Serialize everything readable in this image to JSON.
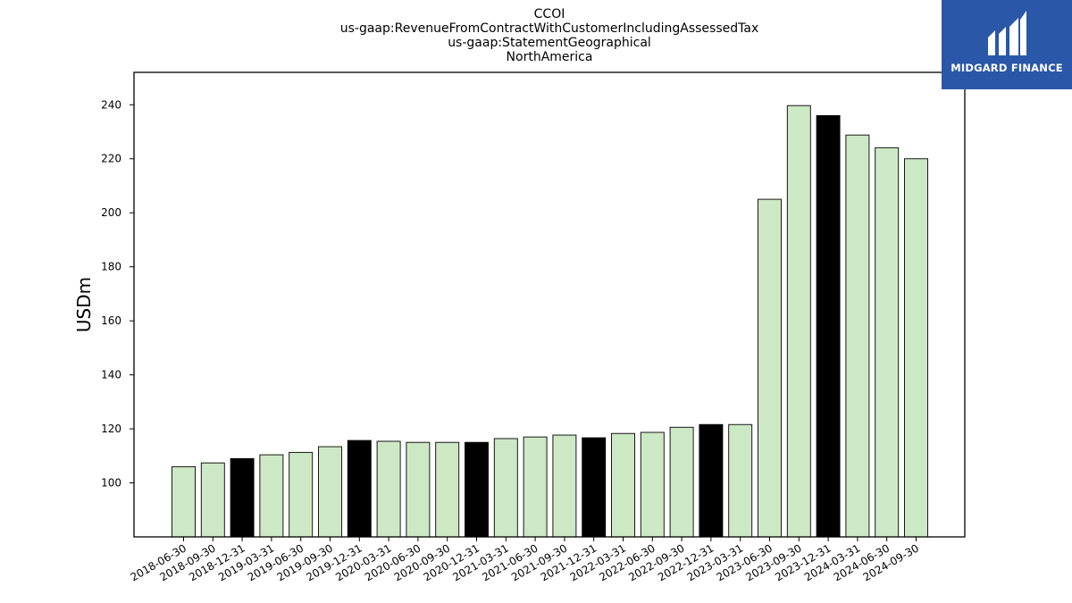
{
  "chart_data": {
    "type": "bar",
    "title_lines": [
      "CCOI",
      "us-gaap:RevenueFromContractWithCustomerIncludingAssessedTax",
      "us-gaap:StatementGeographical",
      "NorthAmerica"
    ],
    "ylabel": "USDm",
    "xlabel": "",
    "ylim": [
      80,
      252
    ],
    "yticks": [
      100,
      120,
      140,
      160,
      180,
      200,
      220,
      240
    ],
    "categories": [
      "2018-06-30",
      "2018-09-30",
      "2018-12-31",
      "2019-03-31",
      "2019-06-30",
      "2019-09-30",
      "2019-12-31",
      "2020-03-31",
      "2020-06-30",
      "2020-09-30",
      "2020-12-31",
      "2021-03-31",
      "2021-06-30",
      "2021-09-30",
      "2021-12-31",
      "2022-03-31",
      "2022-06-30",
      "2022-09-30",
      "2022-12-31",
      "2023-03-31",
      "2023-06-30",
      "2023-09-30",
      "2023-12-31",
      "2024-03-31",
      "2024-06-30",
      "2024-09-30"
    ],
    "values": [
      106.0,
      107.4,
      109.0,
      110.4,
      111.3,
      113.4,
      115.7,
      115.4,
      115.0,
      115.0,
      115.0,
      116.4,
      117.0,
      117.7,
      116.7,
      118.3,
      118.7,
      120.6,
      121.6,
      121.6,
      205.0,
      239.7,
      236.0,
      228.8,
      224.1,
      220.0
    ],
    "bar_colors": {
      "quarter": "#cde8c5",
      "year_end": "#000000",
      "edge": "#000000"
    },
    "grid": false,
    "legend": "none"
  },
  "logo": {
    "text": "MIDGARD FINANCE",
    "color": "#2a57a8"
  }
}
